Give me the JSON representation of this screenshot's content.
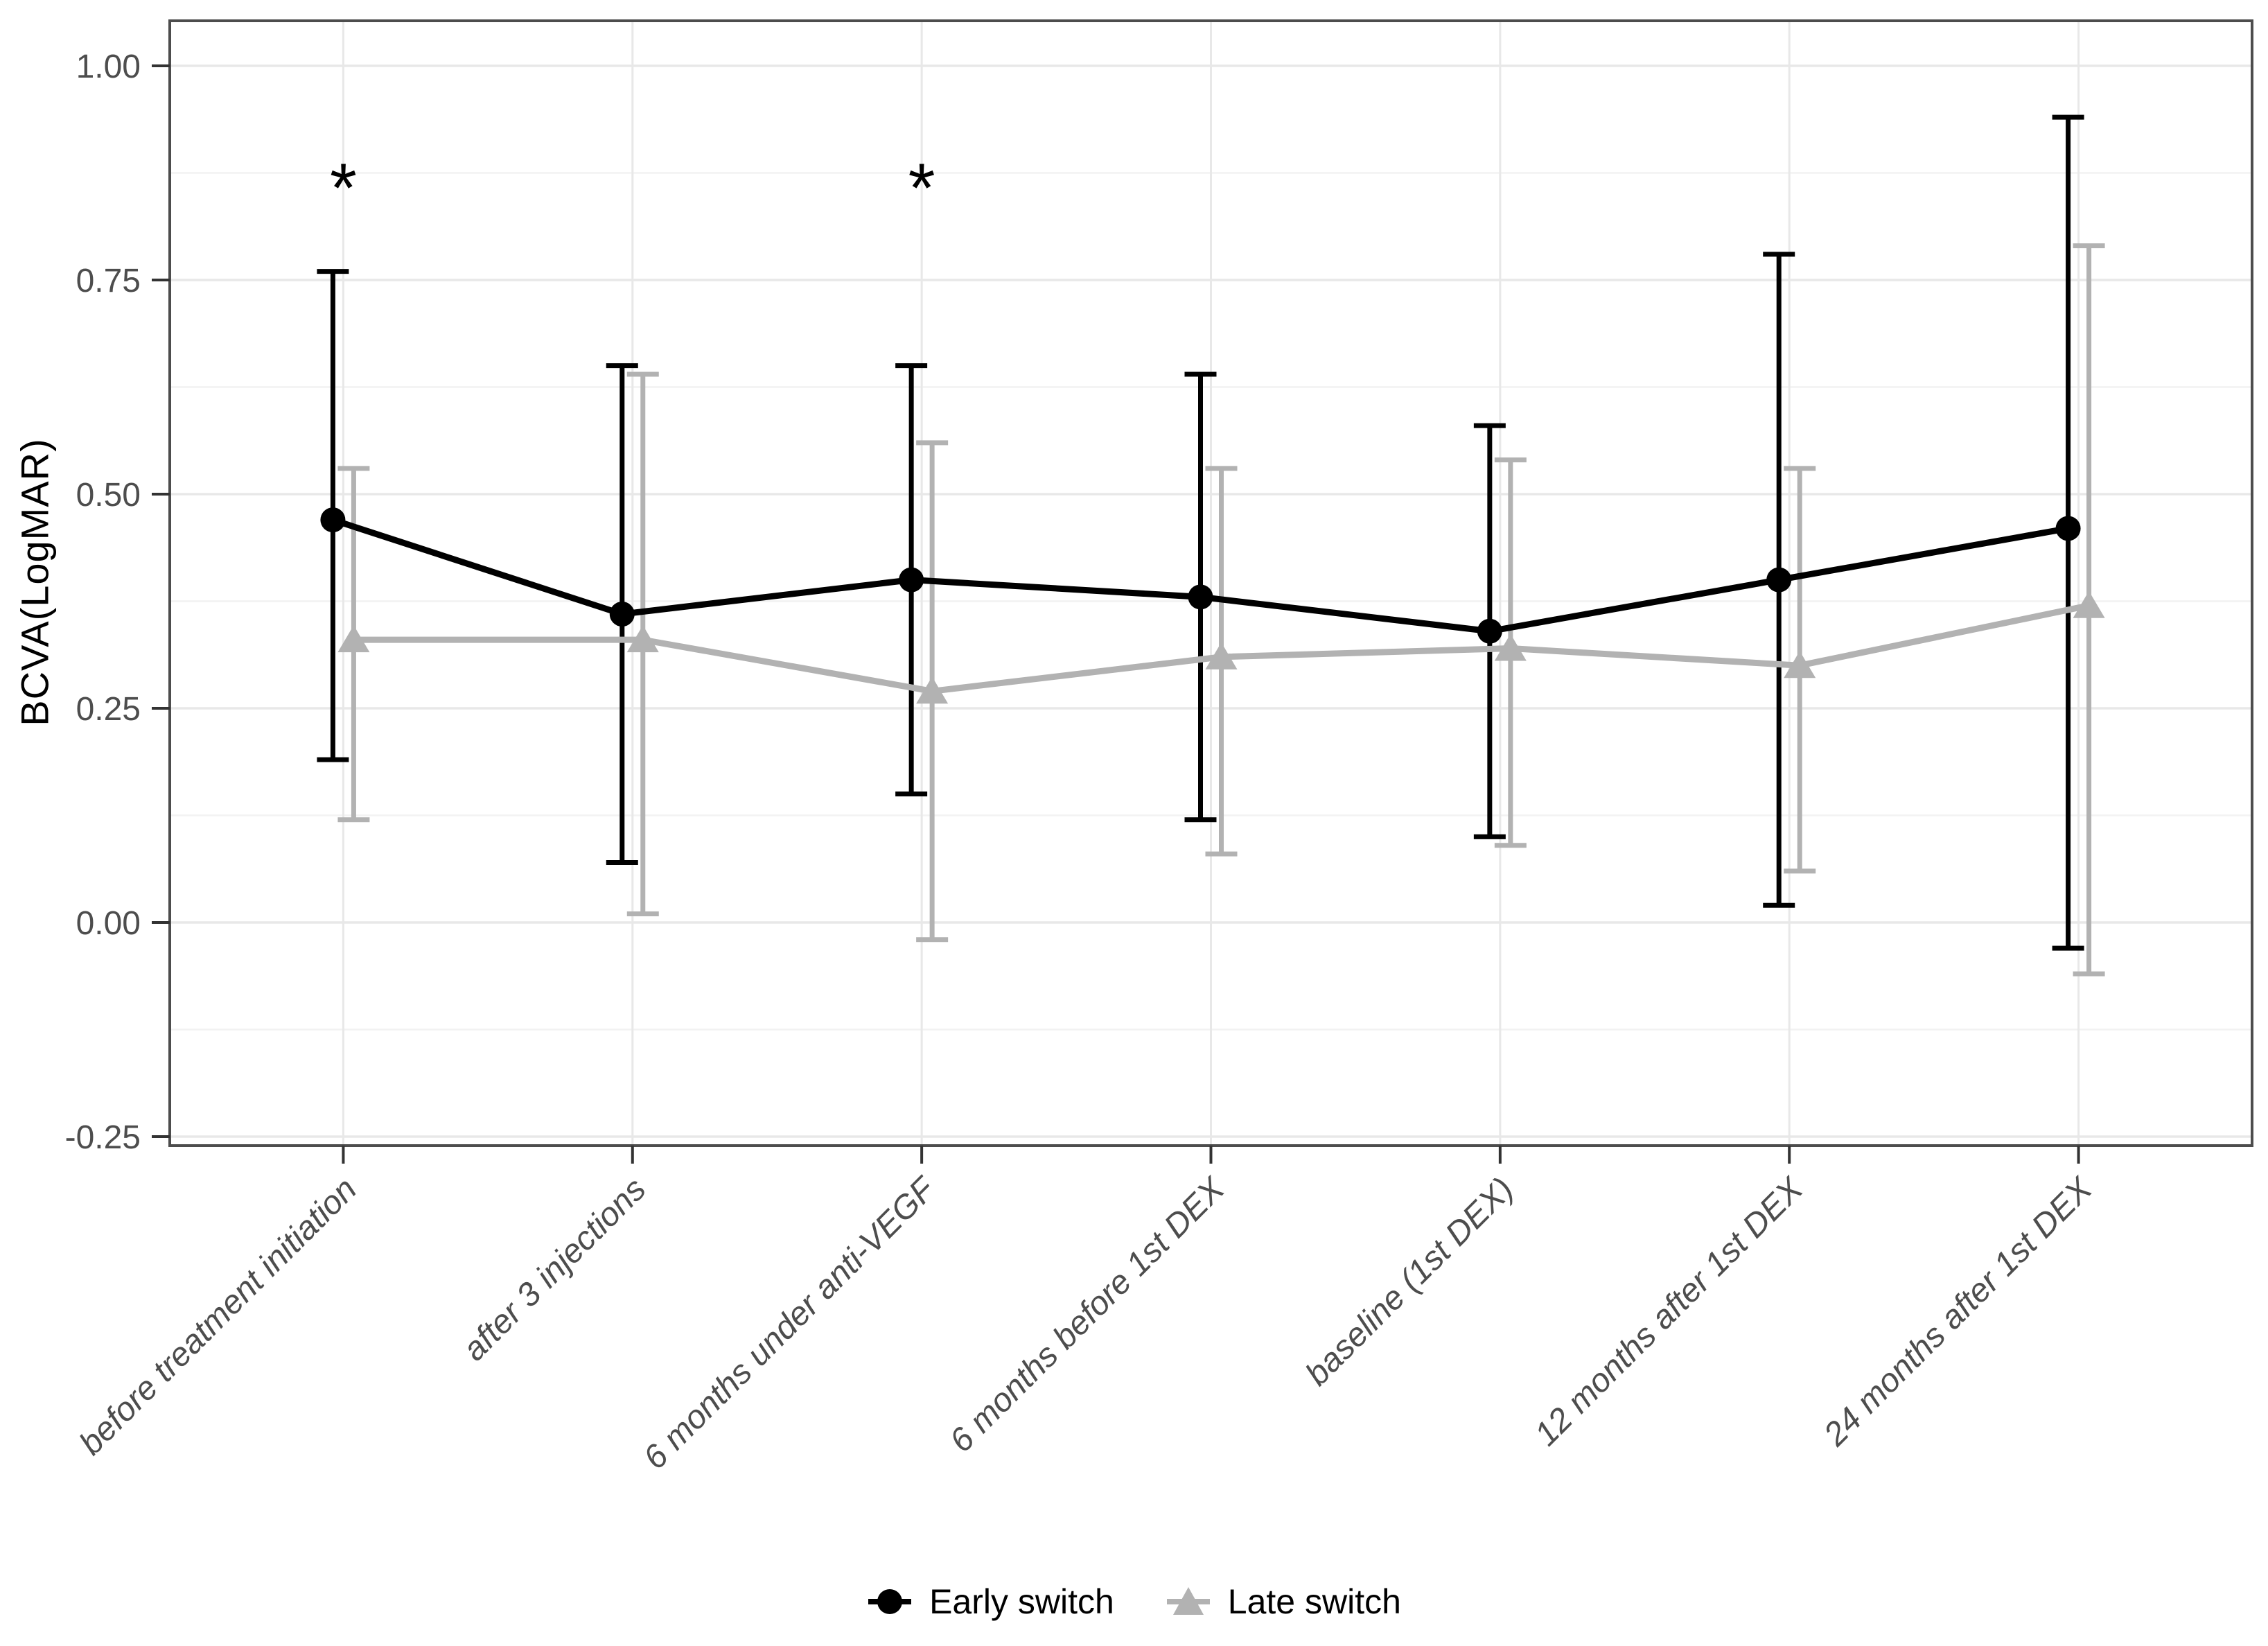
{
  "chart_data": {
    "type": "line",
    "title": "",
    "xlabel": "",
    "ylabel": "BCVA(LogMAR)",
    "ylim": [
      -0.2605,
      1.0526
    ],
    "yticks": [
      1.0,
      0.75,
      0.5,
      0.25,
      0.0,
      -0.25
    ],
    "ytick_labels": [
      "1.00",
      "0.75",
      "0.50",
      "0.25",
      "0.00",
      "-0.25"
    ],
    "minor_yticks": [
      0.875,
      0.625,
      0.375,
      0.125,
      -0.125
    ],
    "grid": true,
    "legend_position": "bottom",
    "categories": [
      "before treatment initiation",
      "after 3 injections",
      "6 months under anti-VEGF",
      "6 months before 1st DEX",
      "baseline (1st DEX)",
      "12 months after 1st DEX",
      "24 months after 1st DEX"
    ],
    "series": [
      {
        "name": "Early switch",
        "marker": "circle",
        "color": "#000000",
        "means": [
          0.47,
          0.36,
          0.4,
          0.38,
          0.34,
          0.4,
          0.46
        ],
        "lower": [
          0.19,
          0.07,
          0.15,
          0.12,
          0.1,
          0.02,
          -0.03
        ],
        "upper": [
          0.76,
          0.65,
          0.65,
          0.64,
          0.58,
          0.78,
          0.94
        ]
      },
      {
        "name": "Late switch",
        "marker": "triangle",
        "color": "#b2b2b2",
        "means": [
          0.33,
          0.33,
          0.27,
          0.31,
          0.32,
          0.3,
          0.37
        ],
        "lower": [
          0.12,
          0.01,
          -0.02,
          0.08,
          0.09,
          0.06,
          -0.06
        ],
        "upper": [
          0.53,
          0.64,
          0.56,
          0.53,
          0.54,
          0.53,
          0.79
        ]
      }
    ],
    "annotations": [
      {
        "text": "*",
        "category_index": 0,
        "y": 0.87
      },
      {
        "text": "*",
        "category_index": 2,
        "y": 0.87
      }
    ]
  },
  "colors": {
    "series_early": "#000000",
    "series_late": "#b2b2b2",
    "grid_major": "#e8e8e8",
    "grid_minor": "#f2f2f2",
    "panel_border": "#4d4d4d",
    "axis_text": "#4d4d4d",
    "tick_mark": "#333333",
    "background": "#ffffff"
  }
}
